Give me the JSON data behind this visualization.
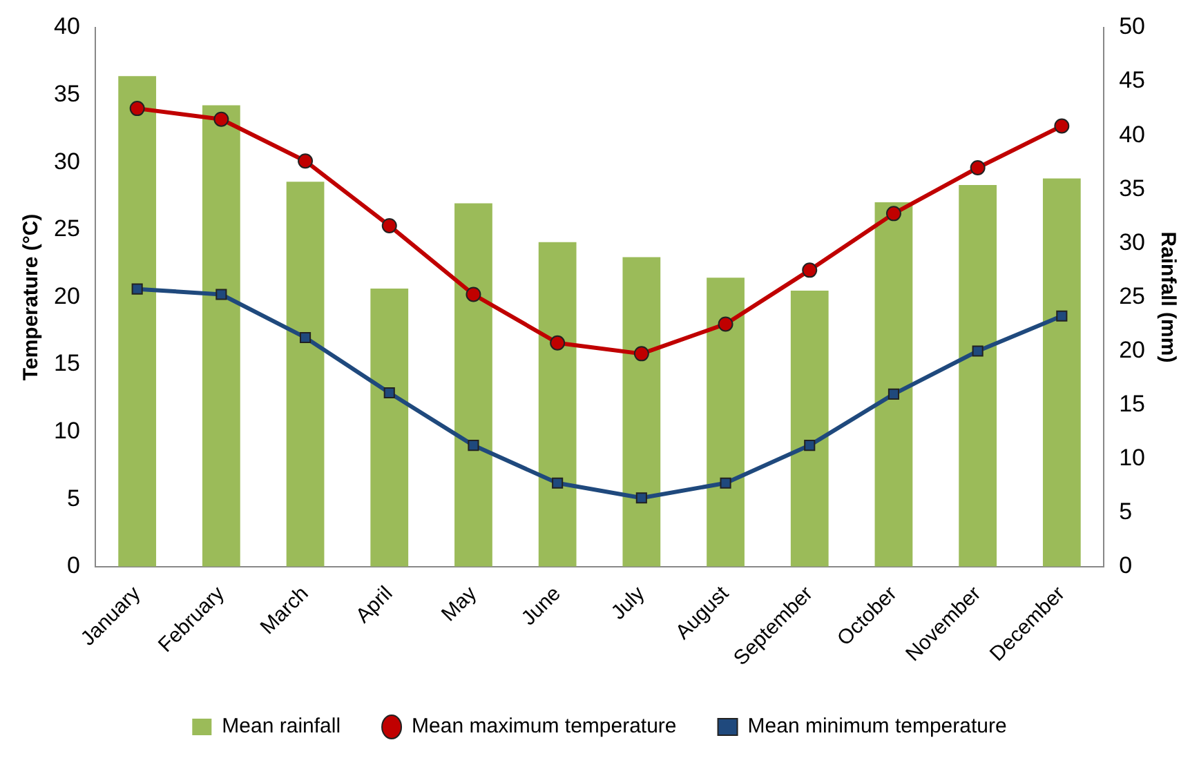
{
  "chart_data": {
    "type": "bar",
    "categories": [
      "January",
      "February",
      "March",
      "April",
      "May",
      "June",
      "July",
      "August",
      "September",
      "October",
      "November",
      "December"
    ],
    "ylabel": "Temperature (°C)",
    "y2label": "Rainfall (mm)",
    "ylim": [
      0,
      40
    ],
    "yticks": [
      0,
      5,
      10,
      15,
      20,
      25,
      30,
      35,
      40
    ],
    "y2lim": [
      0,
      50
    ],
    "y2ticks": [
      0,
      5,
      10,
      15,
      20,
      25,
      30,
      35,
      40,
      45,
      50
    ],
    "grid": false,
    "legend": "bottom",
    "series": [
      {
        "name": "Mean rainfall",
        "axis": "y2",
        "color": "#9bbb59",
        "values": [
          45.5,
          42.8,
          35.7,
          25.8,
          33.7,
          30.1,
          28.7,
          26.8,
          25.6,
          33.8,
          35.4,
          36.0
        ]
      },
      {
        "name": "Mean maximum temperature",
        "type": "line",
        "axis": "y",
        "color": "#c00000",
        "marker": "circle",
        "values": [
          34.0,
          33.2,
          30.1,
          25.3,
          20.2,
          16.6,
          15.8,
          18.0,
          22.0,
          26.2,
          29.6,
          32.7
        ]
      },
      {
        "name": "Mean minimum temperature",
        "type": "line",
        "axis": "y",
        "color": "#1f497d",
        "marker": "square",
        "values": [
          20.6,
          20.2,
          17.0,
          12.9,
          9.0,
          6.2,
          5.1,
          6.2,
          9.0,
          12.8,
          16.0,
          18.6
        ]
      }
    ]
  }
}
